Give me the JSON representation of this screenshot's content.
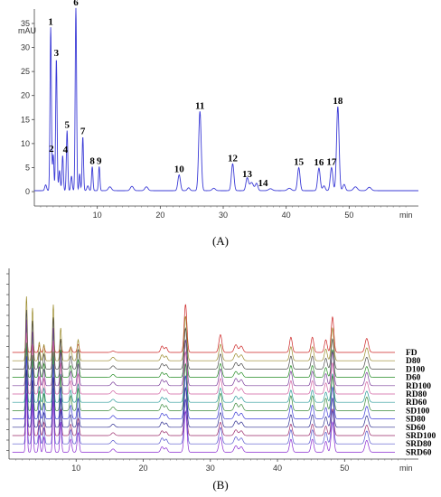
{
  "chart_data": [
    {
      "type": "line",
      "panel_label": "(A)",
      "ylabel": "mAU",
      "xlabel": "min",
      "xlim": [
        0,
        61
      ],
      "ylim": [
        -3,
        38
      ],
      "x_ticks": [
        10,
        20,
        30,
        40,
        50
      ],
      "y_ticks": [
        0,
        5,
        10,
        15,
        20,
        25,
        30,
        35
      ],
      "grid": false,
      "color": "#3b3bd6",
      "peaks": [
        {
          "label": "1",
          "x": 2.6,
          "y": 34.0
        },
        {
          "label": "2",
          "x": 3.0,
          "y": 7.5
        },
        {
          "label": "3",
          "x": 3.5,
          "y": 27.5
        },
        {
          "label": "4",
          "x": 4.5,
          "y": 7.3
        },
        {
          "label": "5",
          "x": 5.2,
          "y": 12.5
        },
        {
          "label": "6",
          "x": 6.6,
          "y": 38.0
        },
        {
          "label": "7",
          "x": 7.7,
          "y": 11.2
        },
        {
          "label": "8",
          "x": 9.2,
          "y": 5.0
        },
        {
          "label": "9",
          "x": 10.3,
          "y": 5.0
        },
        {
          "label": "10",
          "x": 23.0,
          "y": 3.3
        },
        {
          "label": "11",
          "x": 26.3,
          "y": 16.5
        },
        {
          "label": "12",
          "x": 31.5,
          "y": 5.6
        },
        {
          "label": "13",
          "x": 33.8,
          "y": 2.6
        },
        {
          "label": "14",
          "x": 35.3,
          "y": 1.5
        },
        {
          "label": "15",
          "x": 42.0,
          "y": 4.8
        },
        {
          "label": "16",
          "x": 45.2,
          "y": 4.7
        },
        {
          "label": "17",
          "x": 47.2,
          "y": 4.8
        },
        {
          "label": "18",
          "x": 48.2,
          "y": 17.5
        }
      ]
    },
    {
      "type": "line",
      "panel_label": "(B)",
      "xlabel": "min",
      "xlim": [
        0,
        61
      ],
      "x_ticks": [
        10,
        20,
        30,
        40,
        50
      ],
      "grid": false,
      "series": [
        {
          "name": "FD",
          "color": "#cc2222"
        },
        {
          "name": "D80",
          "color": "#9a8a2a"
        },
        {
          "name": "D100",
          "color": "#4a4a4a"
        },
        {
          "name": "D60",
          "color": "#228b22"
        },
        {
          "name": "RD100",
          "color": "#7a3b9a"
        },
        {
          "name": "RD80",
          "color": "#d05fa0"
        },
        {
          "name": "RD60",
          "color": "#2a9a9a"
        },
        {
          "name": "SD100",
          "color": "#3a8a3a"
        },
        {
          "name": "SD80",
          "color": "#3b3bd6"
        },
        {
          "name": "SD60",
          "color": "#2b2b8f"
        },
        {
          "name": "SRD100",
          "color": "#9a2a6a"
        },
        {
          "name": "SRD80",
          "color": "#5555cc"
        },
        {
          "name": "SRD60",
          "color": "#8a2ad0"
        }
      ]
    }
  ]
}
